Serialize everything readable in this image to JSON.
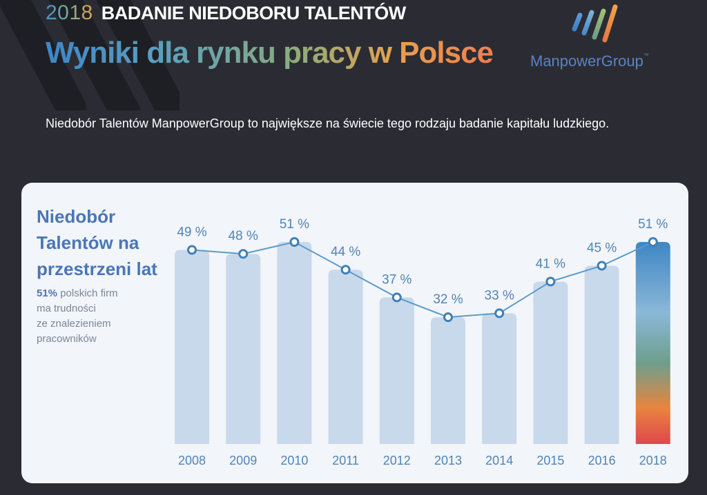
{
  "header": {
    "year": "2018",
    "survey_title": "BADANIE NIEDOBORU TALENTÓW",
    "main_heading": "Wyniki dla rynku pracy w Polsce",
    "intro": "Niedobór Talentów ManpowerGroup to największe na świecie tego rodzaju badanie kapitału ludzkiego."
  },
  "logo": {
    "text": "ManpowerGroup",
    "tm": "™"
  },
  "panel": {
    "title_lines": [
      "Niedobór",
      "Talentów na",
      "przestrzeni lat"
    ],
    "note_highlight": "51%",
    "note_rest_lines": [
      "polskich firm",
      "ma trudności",
      "ze znalezieniem",
      "pracowników"
    ]
  },
  "chart_data": {
    "type": "bar",
    "categories": [
      "2008",
      "2009",
      "2010",
      "2011",
      "2012",
      "2013",
      "2014",
      "2015",
      "2016",
      "2018"
    ],
    "values": [
      49,
      48,
      51,
      44,
      37,
      32,
      33,
      41,
      45,
      51
    ],
    "value_labels": [
      "49 %",
      "48 %",
      "51 %",
      "44 %",
      "37 %",
      "32 %",
      "33 %",
      "41 %",
      "45 %",
      "51 %"
    ],
    "overlay": "line",
    "highlight_category": "2018",
    "ylim": [
      0,
      51
    ],
    "colors": {
      "bar": "#c9d9ec",
      "line": "#5b9ac9",
      "text": "#4f84b8",
      "highlight_top": "#3f86c4",
      "highlight_bottom": "#e0474c"
    }
  }
}
